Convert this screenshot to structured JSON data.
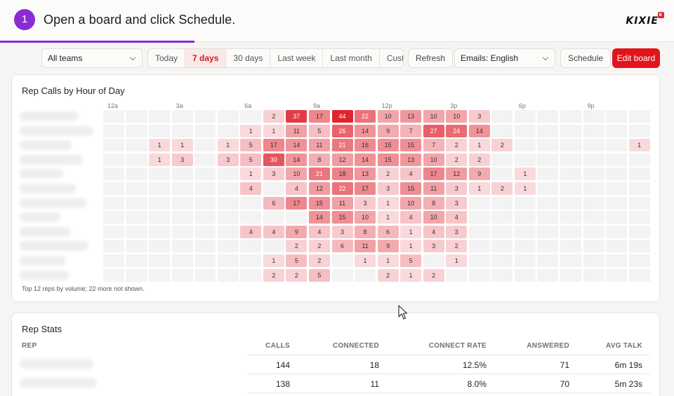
{
  "step": {
    "number": "1",
    "instruction": "Open a board and click Schedule.",
    "logo": "KIXIE",
    "logo_badge": "K"
  },
  "toolbar": {
    "team_select": "All teams",
    "ranges": [
      "Today",
      "7 days",
      "30 days",
      "Last week",
      "Last month",
      "Custom"
    ],
    "active_range": "7 days",
    "refresh": "Refresh",
    "emails_select": "Emails: English",
    "schedule": "Schedule",
    "edit_board": "Edit board"
  },
  "heatmap": {
    "title": "Rep Calls by Hour of Day",
    "hour_labels": [
      {
        "label": "12a",
        "hour": 0
      },
      {
        "label": "3a",
        "hour": 3
      },
      {
        "label": "6a",
        "hour": 6
      },
      {
        "label": "9a",
        "hour": 9
      },
      {
        "label": "12p",
        "hour": 12
      },
      {
        "label": "3p",
        "hour": 15
      },
      {
        "label": "6p",
        "hour": 18
      },
      {
        "label": "9p",
        "hour": 21
      }
    ],
    "rows": [
      [
        null,
        null,
        null,
        null,
        null,
        null,
        null,
        2,
        37,
        17,
        44,
        22,
        10,
        13,
        10,
        10,
        3,
        null,
        null,
        null,
        null,
        null,
        null,
        null
      ],
      [
        null,
        null,
        null,
        null,
        null,
        null,
        1,
        1,
        11,
        5,
        26,
        14,
        9,
        7,
        27,
        24,
        14,
        null,
        null,
        null,
        null,
        null,
        null,
        null
      ],
      [
        null,
        null,
        1,
        1,
        null,
        1,
        5,
        17,
        14,
        11,
        21,
        16,
        15,
        15,
        7,
        2,
        1,
        2,
        null,
        null,
        null,
        null,
        null,
        1
      ],
      [
        null,
        null,
        1,
        3,
        null,
        3,
        5,
        30,
        14,
        8,
        12,
        14,
        15,
        13,
        10,
        2,
        2,
        null,
        null,
        null,
        null,
        null,
        null,
        null
      ],
      [
        null,
        null,
        null,
        null,
        null,
        null,
        1,
        3,
        10,
        21,
        18,
        13,
        2,
        4,
        17,
        12,
        9,
        null,
        1,
        null,
        null,
        null,
        null,
        null
      ],
      [
        null,
        null,
        null,
        null,
        null,
        null,
        4,
        null,
        4,
        12,
        22,
        17,
        3,
        15,
        11,
        3,
        1,
        2,
        1,
        null,
        null,
        null,
        null,
        null
      ],
      [
        null,
        null,
        null,
        null,
        null,
        null,
        null,
        6,
        17,
        15,
        11,
        3,
        1,
        10,
        8,
        3,
        null,
        null,
        null,
        null,
        null,
        null,
        null,
        null
      ],
      [
        null,
        null,
        null,
        null,
        null,
        null,
        null,
        null,
        null,
        14,
        15,
        10,
        1,
        4,
        10,
        4,
        null,
        null,
        null,
        null,
        null,
        null,
        null,
        null
      ],
      [
        null,
        null,
        null,
        null,
        null,
        null,
        4,
        4,
        9,
        4,
        3,
        8,
        6,
        1,
        4,
        3,
        null,
        null,
        null,
        null,
        null,
        null,
        null,
        null
      ],
      [
        null,
        null,
        null,
        null,
        null,
        null,
        null,
        null,
        2,
        2,
        6,
        11,
        9,
        1,
        3,
        2,
        null,
        null,
        null,
        null,
        null,
        null,
        null,
        null
      ],
      [
        null,
        null,
        null,
        null,
        null,
        null,
        null,
        1,
        5,
        2,
        null,
        1,
        1,
        5,
        null,
        1,
        null,
        null,
        null,
        null,
        null,
        null,
        null,
        null
      ],
      [
        null,
        null,
        null,
        null,
        null,
        null,
        null,
        2,
        2,
        5,
        null,
        null,
        2,
        1,
        2,
        null,
        null,
        null,
        null,
        null,
        null,
        null,
        null,
        null
      ]
    ],
    "footnote": "Top 12 reps by volume; 22 more not shown."
  },
  "rep_stats": {
    "title": "Rep Stats",
    "columns": [
      "REP",
      "CALLS",
      "CONNECTED",
      "CONNECT RATE",
      "ANSWERED",
      "AVG TALK"
    ],
    "rows": [
      {
        "calls": "144",
        "connected": "18",
        "connect_rate": "12.5%",
        "answered": "71",
        "avg_talk": "6m 19s"
      },
      {
        "calls": "138",
        "connected": "11",
        "connect_rate": "8.0%",
        "answered": "70",
        "avg_talk": "5m 23s"
      }
    ]
  },
  "colors": {
    "accent": "#8a2bd6",
    "brand_red": "#e1141c",
    "heat_max": "#e0242f",
    "heat_min": "#fbe4e6",
    "empty_cell": "#f3f3f3"
  }
}
